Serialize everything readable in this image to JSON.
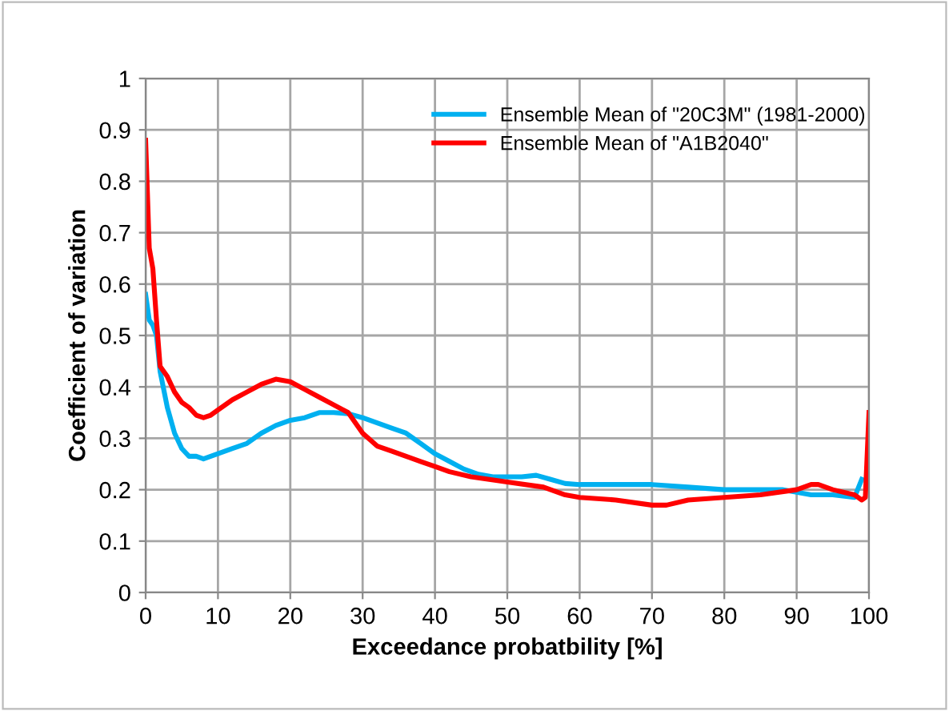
{
  "chart_data": {
    "type": "line",
    "xlabel": "Exceedance probatbility [%]",
    "ylabel": "Coefficient of variation",
    "xlim": [
      0,
      100
    ],
    "xticks": [
      0,
      10,
      20,
      30,
      40,
      50,
      60,
      70,
      80,
      90,
      100
    ],
    "ylim": [
      0,
      1
    ],
    "yticks": [
      0,
      0.1,
      0.2,
      0.3,
      0.4,
      0.5,
      0.6,
      0.7,
      0.8,
      0.9,
      1
    ],
    "grid": true,
    "legend": "top right",
    "marker": "none",
    "line_style": "solid",
    "series": [
      {
        "name": "Ensemble Mean of \"20C3M\" (1981-2000)",
        "color": "#00b0f0",
        "x": [
          0,
          0.5,
          1,
          1.5,
          2,
          3,
          4,
          5,
          6,
          7,
          8,
          9,
          10,
          12,
          14,
          16,
          18,
          20,
          22,
          24,
          26,
          28,
          30,
          32,
          34,
          36,
          38,
          40,
          42,
          44,
          46,
          48,
          50,
          52,
          54,
          56,
          58,
          60,
          65,
          70,
          75,
          80,
          85,
          88,
          90,
          92,
          95,
          98,
          99
        ],
        "values": [
          0.58,
          0.53,
          0.52,
          0.5,
          0.43,
          0.36,
          0.31,
          0.28,
          0.265,
          0.265,
          0.26,
          0.265,
          0.27,
          0.28,
          0.29,
          0.31,
          0.325,
          0.335,
          0.34,
          0.35,
          0.35,
          0.348,
          0.34,
          0.33,
          0.32,
          0.31,
          0.29,
          0.27,
          0.255,
          0.24,
          0.23,
          0.225,
          0.225,
          0.225,
          0.228,
          0.22,
          0.212,
          0.21,
          0.21,
          0.21,
          0.205,
          0.2,
          0.2,
          0.2,
          0.195,
          0.19,
          0.19,
          0.185,
          0.22
        ]
      },
      {
        "name": "Ensemble Mean of \"A1B2040\"",
        "color": "#ff0000",
        "x": [
          0,
          0.5,
          1,
          1.5,
          2,
          3,
          4,
          5,
          6,
          7,
          8,
          9,
          10,
          12,
          14,
          16,
          18,
          20,
          22,
          24,
          26,
          28,
          30,
          32,
          34,
          36,
          38,
          40,
          42,
          45,
          50,
          55,
          58,
          60,
          65,
          70,
          72,
          75,
          80,
          85,
          90,
          92,
          93,
          95,
          98,
          99,
          99.5,
          100
        ],
        "values": [
          0.88,
          0.67,
          0.63,
          0.53,
          0.44,
          0.42,
          0.39,
          0.37,
          0.36,
          0.345,
          0.34,
          0.345,
          0.355,
          0.375,
          0.39,
          0.405,
          0.415,
          0.41,
          0.395,
          0.38,
          0.365,
          0.35,
          0.31,
          0.285,
          0.275,
          0.265,
          0.255,
          0.245,
          0.235,
          0.225,
          0.215,
          0.205,
          0.19,
          0.185,
          0.18,
          0.17,
          0.17,
          0.18,
          0.185,
          0.19,
          0.2,
          0.21,
          0.21,
          0.2,
          0.19,
          0.18,
          0.185,
          0.35
        ]
      }
    ]
  }
}
